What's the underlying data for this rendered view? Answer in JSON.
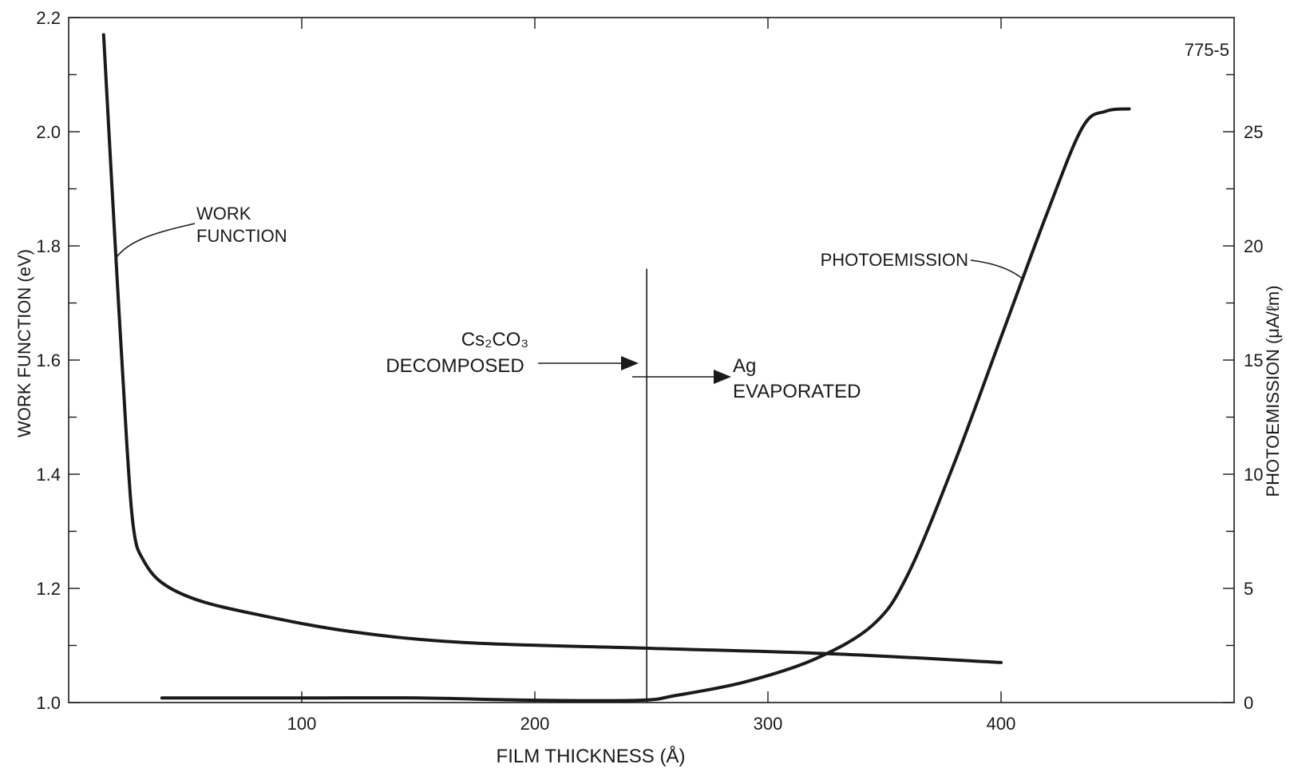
{
  "figure_id": "775-5",
  "chart_data": {
    "type": "line",
    "xlabel": "FILM THICKNESS (Å)",
    "ylabel_left": "WORK FUNCTION (eV)",
    "ylabel_right": "PHOTOEMISSION (μA/ℓm)",
    "xlim": [
      0,
      500
    ],
    "ylim_left": [
      1.0,
      2.2
    ],
    "ylim_right": [
      0,
      30
    ],
    "x_ticks": [
      100,
      200,
      300,
      400
    ],
    "x_tick_labels": [
      "100",
      "200",
      "300",
      "400"
    ],
    "y_left_ticks": [
      1.0,
      1.2,
      1.4,
      1.6,
      1.8,
      2.0,
      2.2
    ],
    "y_left_tick_labels": [
      "1.0",
      "1.2",
      "1.4",
      "1.6",
      "1.8",
      "2.0",
      "2.2"
    ],
    "y_right_ticks": [
      0,
      5,
      10,
      15,
      20,
      25
    ],
    "y_right_tick_labels": [
      "0",
      "5",
      "10",
      "15",
      "20",
      "25"
    ],
    "series": [
      {
        "name": "WORK FUNCTION",
        "axis": "left",
        "x": [
          15,
          20,
          25,
          28,
          32,
          40,
          55,
          80,
          120,
          170,
          250,
          330,
          400
        ],
        "y": [
          2.17,
          1.8,
          1.45,
          1.3,
          1.25,
          1.21,
          1.18,
          1.155,
          1.125,
          1.105,
          1.095,
          1.085,
          1.07
        ]
      },
      {
        "name": "PHOTOEMISSION",
        "axis": "right",
        "x": [
          40,
          100,
          150,
          200,
          245,
          260,
          290,
          320,
          345,
          360,
          380,
          400,
          420,
          435,
          445,
          455
        ],
        "y": [
          0.2,
          0.2,
          0.2,
          0.1,
          0.1,
          0.3,
          0.9,
          1.9,
          3.4,
          5.6,
          10.5,
          16.0,
          21.5,
          25.2,
          25.9,
          26.0
        ]
      }
    ],
    "marker_x": 248,
    "annotations": {
      "cs2co3_line1": "Cs₂CO₃",
      "cs2co3_line2": "DECOMPOSED",
      "ag_line1": "Ag",
      "ag_line2": "EVAPORATED",
      "wf_label_line1": "WORK",
      "wf_label_line2": "FUNCTION",
      "pe_label": "PHOTOEMISSION"
    }
  }
}
